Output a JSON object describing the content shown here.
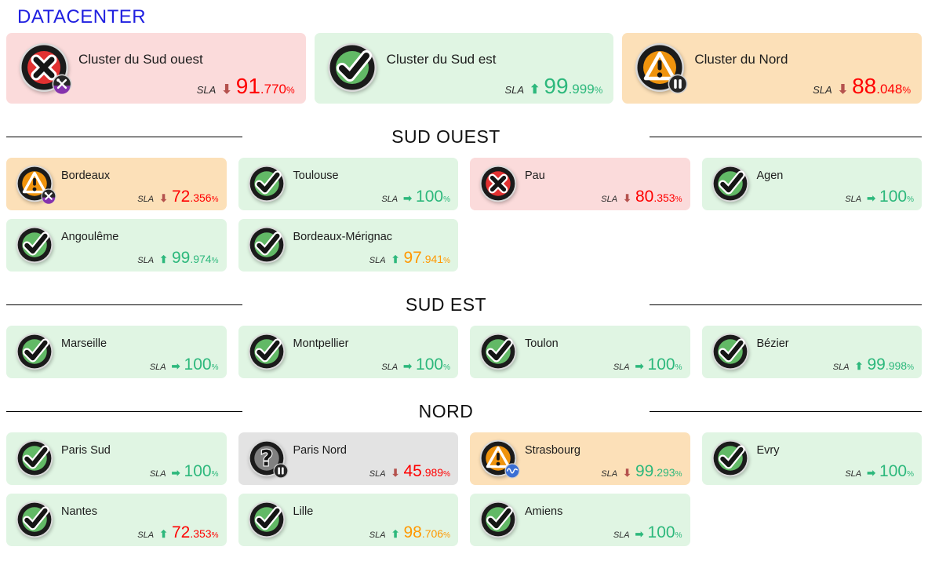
{
  "title": "DATACENTER",
  "sla_label": "SLA",
  "percent": "%",
  "colors": {
    "title_blue": "#2020e0",
    "bg_pink": "#fbdbdb",
    "bg_green": "#e0f5e3",
    "bg_orange": "#fce0b8",
    "bg_gray": "#e3e3e3",
    "value_red": "#ff0000",
    "value_green": "#2db87c",
    "value_orange": "#ff9800",
    "arrow_down": "#b5524e",
    "arrow_up": "#2db87c",
    "icon_ok_green": "#62b966",
    "icon_critical_red": "#e23131",
    "icon_warning_orange": "#ef930d",
    "icon_unknown_gray": "#808080"
  },
  "clusters": [
    {
      "name": "Cluster du Sud ouest",
      "status": "critical",
      "badge": "tools",
      "tone": "pink",
      "sla": {
        "trend": "down",
        "int": "91",
        "dec": ".770",
        "color": "red"
      }
    },
    {
      "name": "Cluster du Sud est",
      "status": "ok",
      "badge": null,
      "tone": "green",
      "sla": {
        "trend": "up",
        "int": "99",
        "dec": ".999",
        "color": "green"
      }
    },
    {
      "name": "Cluster du Nord",
      "status": "warning",
      "badge": "pause",
      "tone": "orange",
      "sla": {
        "trend": "down",
        "int": "88",
        "dec": ".048",
        "color": "red"
      }
    }
  ],
  "sections": [
    {
      "title": "SUD OUEST",
      "cards": [
        {
          "name": "Bordeaux",
          "status": "warning",
          "badge": "tools",
          "tone": "orange",
          "sla": {
            "trend": "down",
            "int": "72",
            "dec": ".356",
            "color": "red"
          }
        },
        {
          "name": "Toulouse",
          "status": "ok",
          "badge": null,
          "tone": "green",
          "sla": {
            "trend": "right",
            "int": "100",
            "dec": "",
            "color": "green"
          }
        },
        {
          "name": "Pau",
          "status": "critical",
          "badge": null,
          "tone": "pink",
          "sla": {
            "trend": "down",
            "int": "80",
            "dec": ".353",
            "color": "red"
          }
        },
        {
          "name": "Agen",
          "status": "ok",
          "badge": null,
          "tone": "green",
          "sla": {
            "trend": "right",
            "int": "100",
            "dec": "",
            "color": "green"
          }
        },
        {
          "name": "Angoulême",
          "status": "ok",
          "badge": null,
          "tone": "green",
          "sla": {
            "trend": "up",
            "int": "99",
            "dec": ".974",
            "color": "green"
          }
        },
        {
          "name": "Bordeaux-Mérignac",
          "status": "ok",
          "badge": null,
          "tone": "green",
          "sla": {
            "trend": "up",
            "int": "97",
            "dec": ".941",
            "color": "orange"
          }
        }
      ]
    },
    {
      "title": "SUD EST",
      "cards": [
        {
          "name": "Marseille",
          "status": "ok",
          "badge": null,
          "tone": "green",
          "sla": {
            "trend": "right",
            "int": "100",
            "dec": "",
            "color": "green"
          }
        },
        {
          "name": "Montpellier",
          "status": "ok",
          "badge": null,
          "tone": "green",
          "sla": {
            "trend": "right",
            "int": "100",
            "dec": "",
            "color": "green"
          }
        },
        {
          "name": "Toulon",
          "status": "ok",
          "badge": null,
          "tone": "green",
          "sla": {
            "trend": "right",
            "int": "100",
            "dec": "",
            "color": "green"
          }
        },
        {
          "name": "Bézier",
          "status": "ok",
          "badge": null,
          "tone": "green",
          "sla": {
            "trend": "up",
            "int": "99",
            "dec": ".998",
            "color": "green"
          }
        }
      ]
    },
    {
      "title": "NORD",
      "cards": [
        {
          "name": "Paris Sud",
          "status": "ok",
          "badge": null,
          "tone": "green",
          "sla": {
            "trend": "right",
            "int": "100",
            "dec": "",
            "color": "green"
          }
        },
        {
          "name": "Paris Nord",
          "status": "unknown",
          "badge": "pause",
          "tone": "gray",
          "sla": {
            "trend": "down",
            "int": "45",
            "dec": ".989",
            "color": "red"
          }
        },
        {
          "name": "Strasbourg",
          "status": "warning",
          "badge": "flapping",
          "tone": "orange",
          "sla": {
            "trend": "down",
            "int": "99",
            "dec": ".293",
            "color": "green"
          }
        },
        {
          "name": "Evry",
          "status": "ok",
          "badge": null,
          "tone": "green",
          "sla": {
            "trend": "right",
            "int": "100",
            "dec": "",
            "color": "green"
          }
        },
        {
          "name": "Nantes",
          "status": "ok",
          "badge": null,
          "tone": "green",
          "sla": {
            "trend": "up",
            "int": "72",
            "dec": ".353",
            "color": "red"
          }
        },
        {
          "name": "Lille",
          "status": "ok",
          "badge": null,
          "tone": "green",
          "sla": {
            "trend": "up",
            "int": "98",
            "dec": ".706",
            "color": "orange"
          }
        },
        {
          "name": "Amiens",
          "status": "ok",
          "badge": null,
          "tone": "green",
          "sla": {
            "trend": "right",
            "int": "100",
            "dec": "",
            "color": "green"
          }
        }
      ]
    }
  ]
}
